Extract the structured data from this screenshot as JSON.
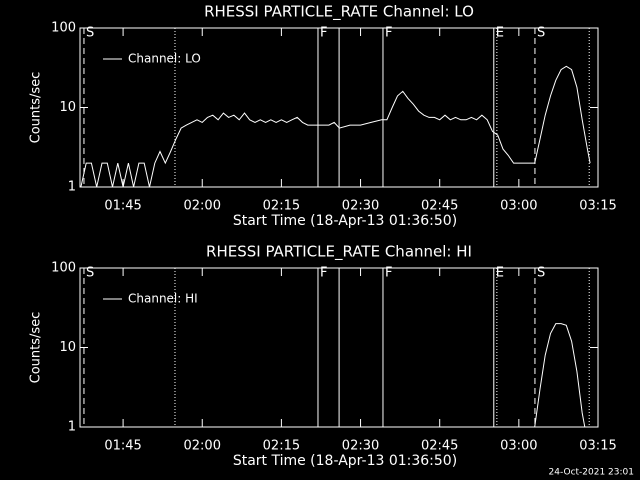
{
  "chart_data": [
    {
      "type": "line",
      "title": "RHESSI PARTICLE_RATE Channel: LO",
      "xlabel": "Start Time (18-Apr-13 01:36:50)",
      "ylabel": "Counts/sec",
      "log_y": true,
      "ylim": [
        1,
        100
      ],
      "yticks": [
        1,
        10,
        100
      ],
      "xlim": [
        "01:36:50",
        "03:15"
      ],
      "xticks": [
        "01:45",
        "02:00",
        "02:15",
        "02:30",
        "02:45",
        "03:00",
        "03:15"
      ],
      "legend": "upper left",
      "x": [
        "01:37",
        "01:38",
        "01:39",
        "01:40",
        "01:41",
        "01:42",
        "01:43",
        "01:44",
        "01:45",
        "01:46",
        "01:47",
        "01:48",
        "01:49",
        "01:50",
        "01:51",
        "01:52",
        "01:53",
        "01:54",
        "01:55",
        "01:56",
        "01:57",
        "01:58",
        "01:59",
        "02:00",
        "02:01",
        "02:02",
        "02:03",
        "02:04",
        "02:05",
        "02:06",
        "02:07",
        "02:08",
        "02:09",
        "02:10",
        "02:11",
        "02:12",
        "02:13",
        "02:14",
        "02:15",
        "02:16",
        "02:17",
        "02:18",
        "02:19",
        "02:20",
        "02:22",
        "02:24",
        "02:25",
        "02:26",
        "02:28",
        "02:30",
        "02:32",
        "02:34",
        "02:35",
        "02:36",
        "02:37",
        "02:38",
        "02:39",
        "02:40",
        "02:41",
        "02:42",
        "02:43",
        "02:44",
        "02:45",
        "02:46",
        "02:47",
        "02:48",
        "02:49",
        "02:50",
        "02:51",
        "02:52",
        "02:53",
        "02:54",
        "02:55",
        "02:56",
        "02:57",
        "02:58",
        "02:59",
        "03:00",
        "03:01",
        "03:02",
        "03:03",
        "03:04",
        "03:05",
        "03:06",
        "03:07",
        "03:08",
        "03:09",
        "03:10",
        "03:11",
        "03:12",
        "03:13",
        "03:13:30"
      ],
      "series": [
        {
          "name": "Channel: LO",
          "color": "#ffffff",
          "values": [
            1,
            2,
            2,
            1,
            2,
            2,
            1,
            2,
            1,
            2,
            1,
            2,
            2,
            1,
            2,
            2.8,
            2,
            2.8,
            4,
            5.5,
            6,
            6.5,
            7,
            6.5,
            7.5,
            8,
            7,
            8.5,
            7.5,
            8,
            7,
            8.5,
            7,
            6.5,
            7,
            6.5,
            7,
            6.5,
            7,
            6.5,
            7,
            7.5,
            6.5,
            6,
            6,
            6,
            6.5,
            5.5,
            6,
            6,
            6.5,
            7,
            7,
            10,
            14,
            16,
            13,
            11,
            9,
            8,
            7.5,
            7.5,
            7,
            8,
            7,
            7.5,
            7,
            7,
            7.5,
            7,
            8,
            7,
            5,
            4.5,
            3,
            2.5,
            2,
            2,
            2,
            2,
            2,
            4,
            8,
            14,
            22,
            30,
            33,
            30,
            18,
            7,
            3,
            2
          ]
        }
      ],
      "markers": [
        {
          "x": "01:37:35",
          "style": "dashed",
          "label": "S"
        },
        {
          "x": "01:54:50",
          "style": "dotted"
        },
        {
          "x": "02:21:56",
          "style": "solid",
          "label": "F"
        },
        {
          "x": "02:25:56",
          "style": "solid"
        },
        {
          "x": "02:34:15",
          "style": "solid",
          "label": "F"
        },
        {
          "x": "02:55:15",
          "style": "solid",
          "label": "E"
        },
        {
          "x": "02:55:50",
          "style": "dotted"
        },
        {
          "x": "03:03:03",
          "style": "dashed",
          "label": "S"
        },
        {
          "x": "03:13:20",
          "style": "dotted"
        }
      ]
    },
    {
      "type": "line",
      "title": "RHESSI PARTICLE_RATE Channel: HI",
      "xlabel": "Start Time (18-Apr-13 01:36:50)",
      "ylabel": "Counts/sec",
      "log_y": true,
      "ylim": [
        1,
        100
      ],
      "yticks": [
        1,
        10,
        100
      ],
      "xlim": [
        "01:36:50",
        "03:15"
      ],
      "xticks": [
        "01:45",
        "02:00",
        "02:15",
        "02:30",
        "02:45",
        "03:00",
        "03:15"
      ],
      "legend": "upper left",
      "x": [
        "03:03",
        "03:04",
        "03:05",
        "03:06",
        "03:07",
        "03:08",
        "03:09",
        "03:10",
        "03:11",
        "03:12",
        "03:12:30"
      ],
      "series": [
        {
          "name": "Channel: HI",
          "color": "#ffffff",
          "values": [
            1,
            3,
            8,
            15,
            20,
            20,
            19,
            12,
            5,
            1.5,
            1
          ]
        }
      ],
      "markers": [
        {
          "x": "01:37:35",
          "style": "dashed",
          "label": "S"
        },
        {
          "x": "01:54:50",
          "style": "dotted"
        },
        {
          "x": "02:21:56",
          "style": "solid",
          "label": "F"
        },
        {
          "x": "02:25:56",
          "style": "solid"
        },
        {
          "x": "02:34:15",
          "style": "solid",
          "label": "F"
        },
        {
          "x": "02:55:15",
          "style": "solid",
          "label": "E"
        },
        {
          "x": "02:55:50",
          "style": "dotted"
        },
        {
          "x": "03:03:03",
          "style": "dashed",
          "label": "S"
        },
        {
          "x": "03:13:20",
          "style": "dotted"
        }
      ]
    }
  ],
  "footer": "24-Oct-2021 23:01"
}
